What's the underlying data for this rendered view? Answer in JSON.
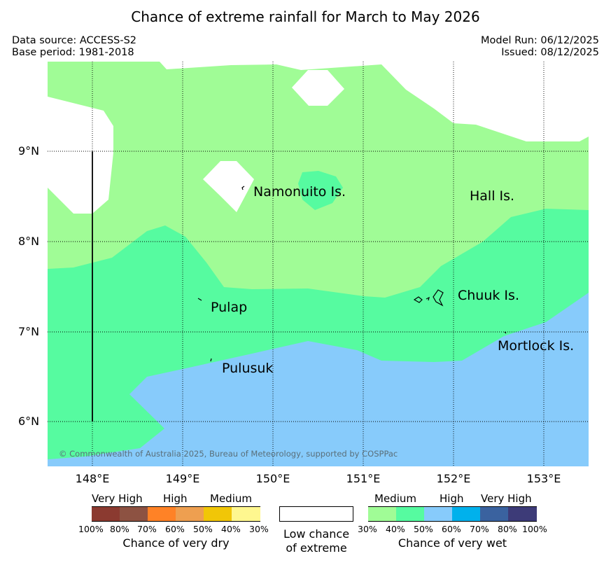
{
  "title": "Chance of extreme rainfall for March to May 2026",
  "meta": {
    "data_source": "Data source: ACCESS-S2",
    "base_period": "Base period: 1981-2018",
    "model_run": "Model Run: 06/12/2025",
    "issued": "Issued: 08/12/2025"
  },
  "map": {
    "lat_labels": [
      "9°N",
      "8°N",
      "7°N",
      "6°N"
    ],
    "lon_labels": [
      "148°E",
      "149°E",
      "150°E",
      "151°E",
      "152°E",
      "153°E"
    ],
    "islands": {
      "namonuito": "Namonuito Is.",
      "hall": "Hall Is.",
      "pulap": "Pulap",
      "chuuk": "Chuuk Is.",
      "mortlock": "Mortlock Is.",
      "pulusuk": "Pulusuk"
    },
    "copyright": "© Commonwealth of Australia 2025, Bureau of Meteorology, supported by COSPPac",
    "colors": {
      "wet_medium_30_40": "#a0fc96",
      "wet_medium_40_50": "#56fba0",
      "wet_high_50_60": "#87cbfb",
      "land": "#000000"
    }
  },
  "legend": {
    "dry": {
      "categories": [
        "Very High",
        "High",
        "Medium"
      ],
      "ticks": [
        "100%",
        "80%",
        "70%",
        "60%",
        "50%",
        "40%",
        "30%"
      ],
      "title": "Chance of very dry",
      "colors": [
        "#8b3a30",
        "#8d5242",
        "#ff8226",
        "#ee9f50",
        "#f1c607",
        "#fef78f"
      ]
    },
    "low": {
      "line1": "Low chance",
      "line2": "of extreme"
    },
    "wet": {
      "categories": [
        "Medium",
        "High",
        "Very High"
      ],
      "ticks": [
        "30%",
        "40%",
        "50%",
        "60%",
        "70%",
        "80%",
        "100%"
      ],
      "title": "Chance of very wet",
      "colors": [
        "#a0fc96",
        "#56fba0",
        "#87cbfb",
        "#00b1ec",
        "#3a629f",
        "#3d3b78"
      ]
    }
  }
}
